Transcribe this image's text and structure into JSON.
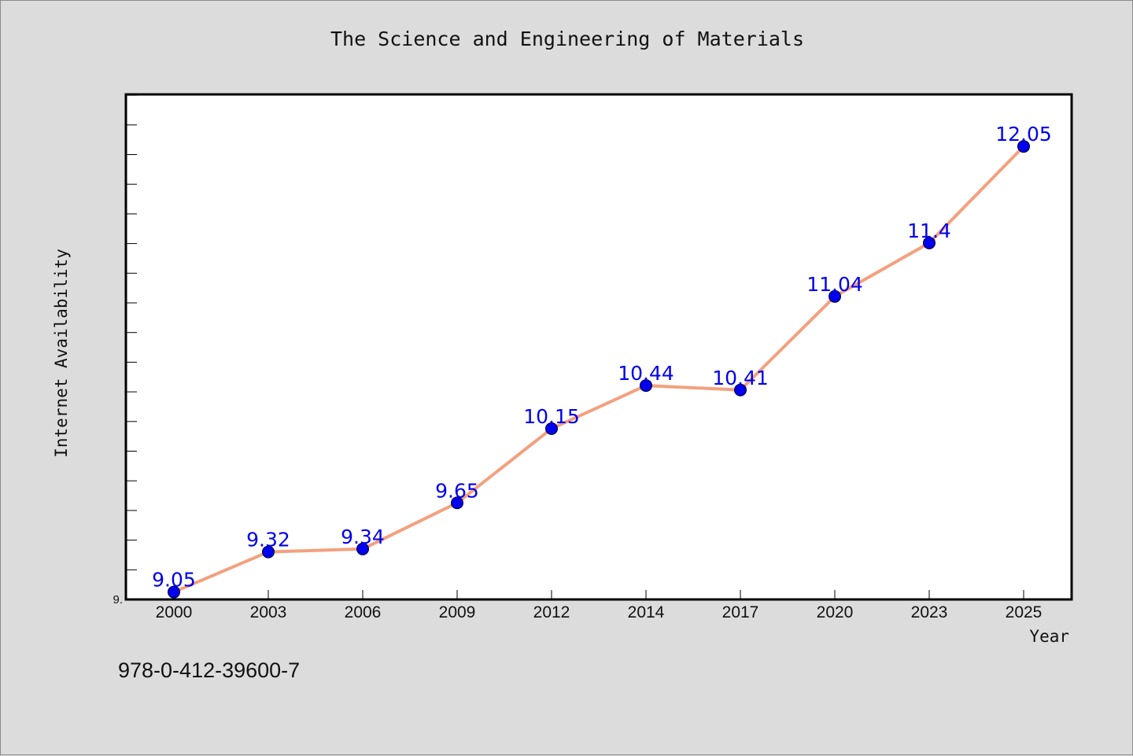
{
  "title": "The Science and Engineering of Materials",
  "isbn": "978-0-412-39600-7",
  "chart_data": {
    "type": "line",
    "title": "The Science and Engineering of Materials",
    "xlabel": "Year",
    "ylabel": "Internet Availability",
    "categories": [
      "2000",
      "2003",
      "2006",
      "2009",
      "2012",
      "2014",
      "2017",
      "2020",
      "2023",
      "2025"
    ],
    "values": [
      9.05,
      9.32,
      9.34,
      9.65,
      10.15,
      10.44,
      10.41,
      11.04,
      11.4,
      12.05
    ],
    "data_labels": [
      "9.05",
      "9.32",
      "9.34",
      "9.65",
      "10.15",
      "10.44",
      "10.41",
      "11.04",
      "11.4",
      "12.05"
    ],
    "y_tick_labels": [
      "9."
    ],
    "ylim": [
      9.0,
      12.4
    ],
    "grid": false,
    "line_color": "#f4a07e",
    "marker_color": "#0000ee",
    "label_color": "#0000ee"
  }
}
